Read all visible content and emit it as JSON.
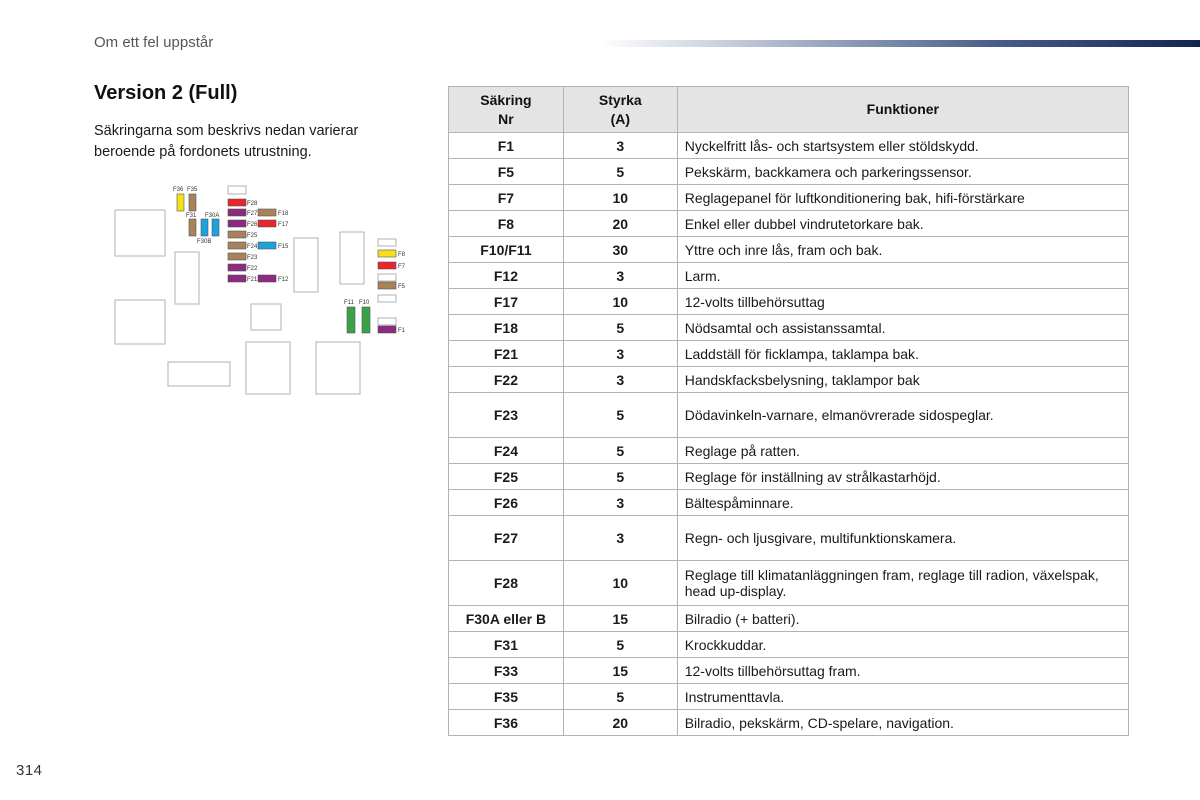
{
  "header": {
    "section": "Om ett fel uppstår"
  },
  "page": {
    "title": "Version 2 (Full)",
    "intro": "Säkringarna som beskrivs nedan varierar beroende på fordonets utrustning.",
    "number": "314"
  },
  "colors": {
    "yellow": "#f5e11a",
    "brown": "#a8825a",
    "blue": "#1aa3dc",
    "red": "#e8252a",
    "purple": "#8b2a7f",
    "green": "#3aa14a",
    "header_bar_end": "#13244f"
  },
  "diagram": {
    "labels": {
      "f36": "F36",
      "f35": "F35",
      "f31": "F31",
      "f30a": "F30A",
      "f30b": "F30B",
      "f28": "F28",
      "f27": "F27",
      "f26": "F26",
      "f25": "F25",
      "f24": "F24",
      "f23": "F23",
      "f22": "F22",
      "f21": "F21",
      "f18": "F18",
      "f17": "F17",
      "f15": "F15",
      "f12": "F12",
      "f8": "F8",
      "f7": "F7",
      "f5": "F5",
      "f11": "F11",
      "f10": "F10",
      "f1": "F1"
    }
  },
  "table": {
    "headers": {
      "fuse": "Säkring\nNr",
      "amp": "Styrka\n(A)",
      "functions": "Funktioner"
    },
    "rows": [
      {
        "id": "F1",
        "amp": "3",
        "fn": "Nyckelfritt lås- och startsystem eller stöldskydd."
      },
      {
        "id": "F5",
        "amp": "5",
        "fn": "Pekskärm, backkamera och parkeringssensor."
      },
      {
        "id": "F7",
        "amp": "10",
        "fn": "Reglagepanel för luftkonditionering bak, hifi-förstärkare"
      },
      {
        "id": "F8",
        "amp": "20",
        "fn": "Enkel eller dubbel vindrutetorkare bak."
      },
      {
        "id": "F10/F11",
        "amp": "30",
        "fn": "Yttre och inre lås, fram och bak."
      },
      {
        "id": "F12",
        "amp": "3",
        "fn": "Larm."
      },
      {
        "id": "F17",
        "amp": "10",
        "fn": "12-volts tillbehörsuttag"
      },
      {
        "id": "F18",
        "amp": "5",
        "fn": "Nödsamtal och assistanssamtal."
      },
      {
        "id": "F21",
        "amp": "3",
        "fn": "Laddställ för ficklampa, taklampa bak."
      },
      {
        "id": "F22",
        "amp": "3",
        "fn": "Handskfacksbelysning, taklampor bak"
      },
      {
        "id": "F23",
        "amp": "5",
        "fn": "Dödavinkeln-varnare, elmanövrerade sidospeglar.",
        "tall": true
      },
      {
        "id": "F24",
        "amp": "5",
        "fn": "Reglage på ratten."
      },
      {
        "id": "F25",
        "amp": "5",
        "fn": "Reglage för inställning av strålkastarhöjd."
      },
      {
        "id": "F26",
        "amp": "3",
        "fn": "Bältespåminnare."
      },
      {
        "id": "F27",
        "amp": "3",
        "fn": "Regn- och ljusgivare, multifunktionskamera.",
        "tall": true
      },
      {
        "id": "F28",
        "amp": "10",
        "fn": "Reglage till klimatanläggningen fram, reglage till radion, växelspak, head up-display.",
        "tall": true
      },
      {
        "id": "F30A eller B",
        "amp": "15",
        "fn": "Bilradio (+ batteri)."
      },
      {
        "id": "F31",
        "amp": "5",
        "fn": "Krockkuddar."
      },
      {
        "id": "F33",
        "amp": "15",
        "fn": "12-volts tillbehörsuttag fram."
      },
      {
        "id": "F35",
        "amp": "5",
        "fn": "Instrumenttavla."
      },
      {
        "id": "F36",
        "amp": "20",
        "fn": "Bilradio, pekskärm, CD-spelare, navigation."
      }
    ]
  }
}
